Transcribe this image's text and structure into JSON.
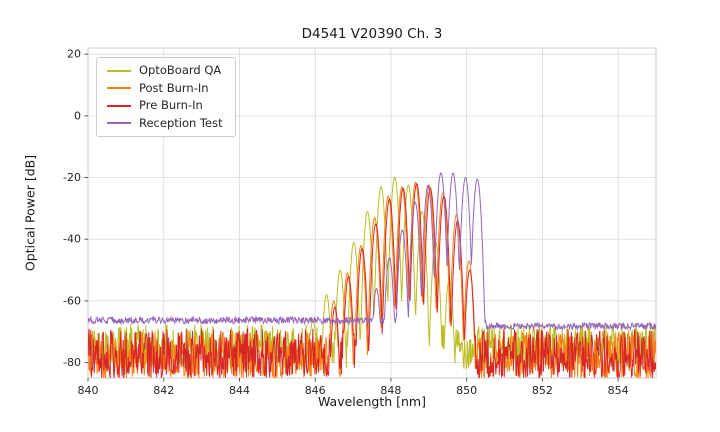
{
  "chart_data": {
    "type": "line",
    "title": "D4541 V20390 Ch. 3",
    "xlabel": "Wavelength [nm]",
    "ylabel": "Optical Power [dB]",
    "xlim": [
      840,
      855
    ],
    "ylim": [
      -85,
      22
    ],
    "xticks": [
      840,
      842,
      844,
      846,
      848,
      850,
      852,
      854
    ],
    "yticks": [
      20,
      0,
      -20,
      -40,
      -60,
      -80
    ],
    "grid": true,
    "grid_color": "#d9d9d9",
    "frame_color": "#cccccc",
    "legend_position": "upper left",
    "series": [
      {
        "name": "OptoBoard QA",
        "color": "#bcbd22",
        "mode_spacing": 0.36,
        "valley_db": 40,
        "noise": {
          "type": "band",
          "min": -82,
          "max": -67.5
        },
        "modes": [
          [
            845.94,
            -66
          ],
          [
            846.3,
            -58
          ],
          [
            846.66,
            -50
          ],
          [
            847.02,
            -41
          ],
          [
            847.38,
            -31
          ],
          [
            847.74,
            -23
          ],
          [
            848.1,
            -20
          ],
          [
            848.46,
            -22.5
          ],
          [
            848.82,
            -31
          ],
          [
            849.18,
            -41
          ],
          [
            849.54,
            -53
          ]
        ]
      },
      {
        "name": "Post Burn-In",
        "color": "#ff7f0e",
        "mode_spacing": 0.36,
        "valley_db": 40,
        "noise": {
          "type": "band",
          "min": -85,
          "max": -70
        },
        "modes": [
          [
            846.49,
            -60
          ],
          [
            846.85,
            -51
          ],
          [
            847.21,
            -42
          ],
          [
            847.57,
            -33
          ],
          [
            847.93,
            -26
          ],
          [
            848.29,
            -23
          ],
          [
            848.65,
            -21.5
          ],
          [
            849.01,
            -22.5
          ],
          [
            849.37,
            -25
          ],
          [
            849.73,
            -32
          ],
          [
            850.06,
            -47
          ]
        ]
      },
      {
        "name": "Pre Burn-In",
        "color": "#d62728",
        "mode_spacing": 0.36,
        "valley_db": 40,
        "noise": {
          "type": "band",
          "min": -85,
          "max": -69
        },
        "modes": [
          [
            846.52,
            -62
          ],
          [
            846.88,
            -52
          ],
          [
            847.24,
            -43
          ],
          [
            847.6,
            -35
          ],
          [
            847.96,
            -27
          ],
          [
            848.32,
            -23.5
          ],
          [
            848.68,
            -22
          ],
          [
            849.04,
            -23.5
          ],
          [
            849.4,
            -26
          ],
          [
            849.76,
            -34
          ],
          [
            850.08,
            -50
          ]
        ]
      },
      {
        "name": "Reception Test",
        "color": "#9467bd",
        "mode_spacing": 0.34,
        "valley_db": 34,
        "noise": {
          "type": "flat",
          "left": -66.3,
          "right": -68.2,
          "cliff_nm": 850.5,
          "ripple": 2.2
        },
        "modes": [
          [
            847.62,
            -56
          ],
          [
            847.96,
            -46
          ],
          [
            848.3,
            -37
          ],
          [
            848.64,
            -28
          ],
          [
            848.98,
            -22.5
          ],
          [
            849.32,
            -18.5
          ],
          [
            849.64,
            -18.5
          ],
          [
            849.97,
            -20
          ],
          [
            850.28,
            -20.5
          ]
        ]
      }
    ]
  }
}
